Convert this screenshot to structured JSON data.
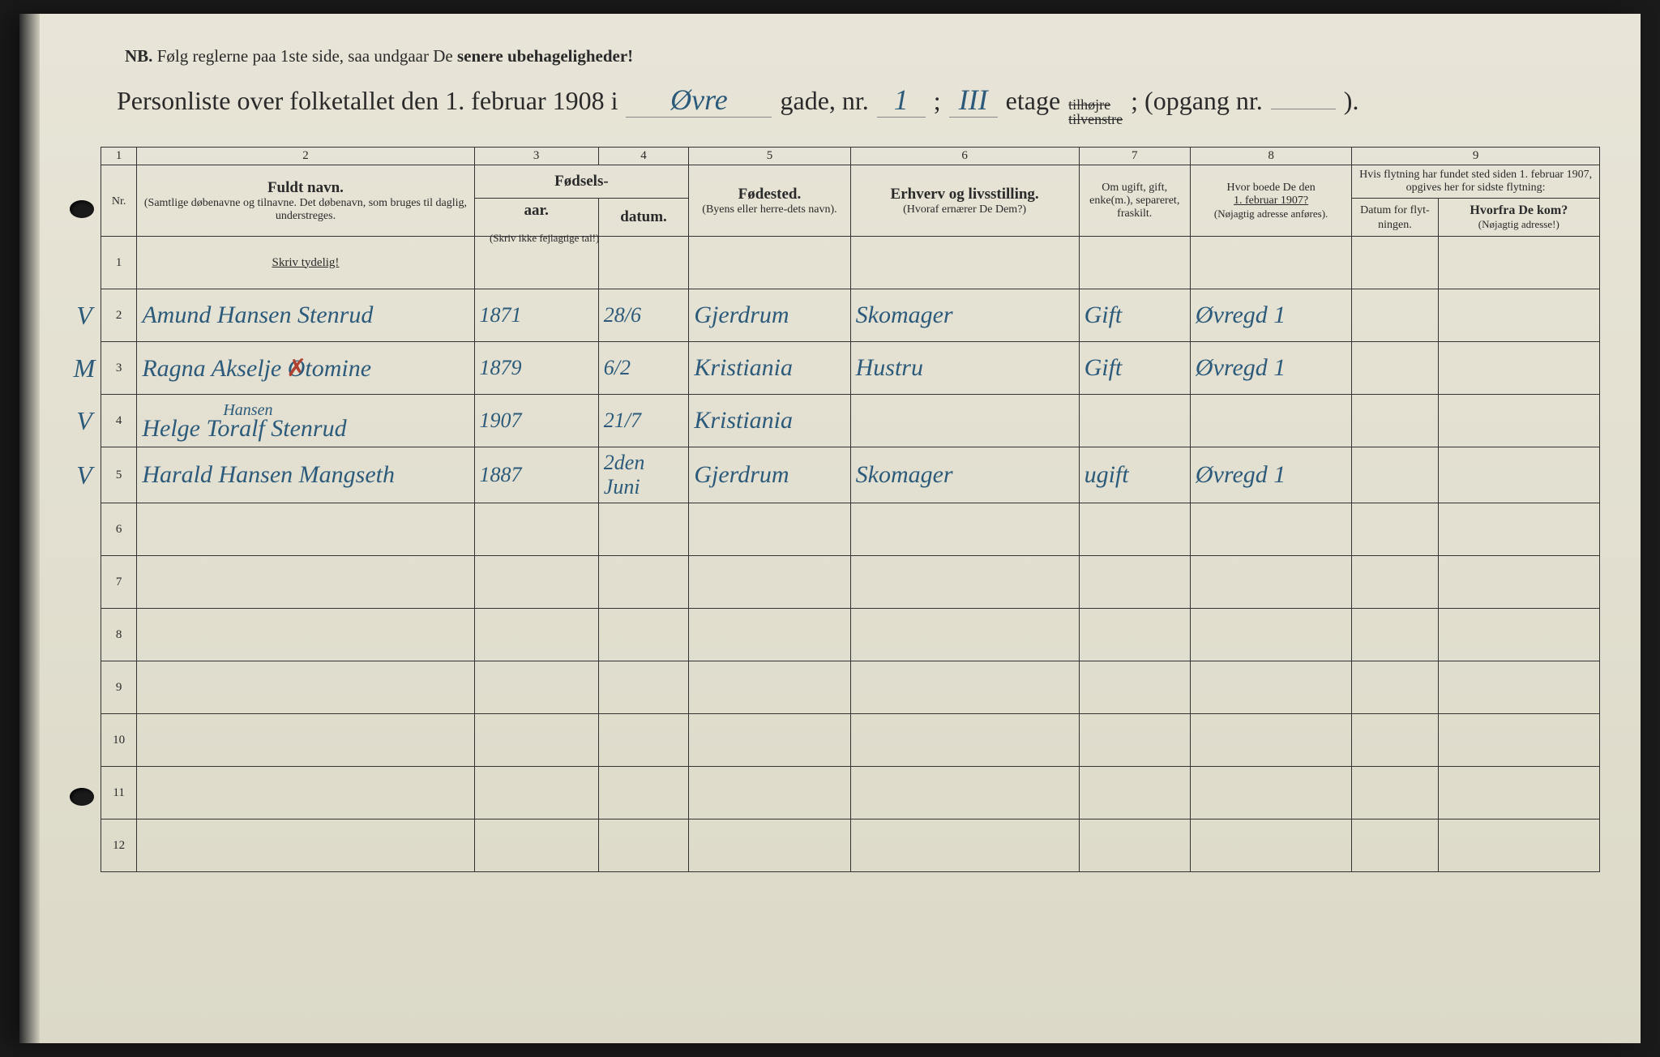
{
  "nb": {
    "prefix": "NB.",
    "text": "Følg reglerne paa 1ste side, saa undgaar De",
    "bold_text": "senere ubehageligheder!"
  },
  "title": {
    "main": "Personliste over folketallet den 1. februar 1908 i",
    "street_hw": "Øvre",
    "gade_label": "gade, nr.",
    "gade_nr_hw": "1",
    "semicolon": ";",
    "etage_hw": "III",
    "etage_label": "etage",
    "strike_top": "tilhøjre",
    "strike_bottom": "tilvenstre",
    "opgang_label": "; (opgang nr.",
    "close": ")."
  },
  "columns": {
    "c1": "1",
    "c2": "2",
    "c3": "3",
    "c4": "4",
    "c5": "5",
    "c6": "6",
    "c7": "7",
    "c8": "8",
    "c9": "9"
  },
  "headers": {
    "nr": "Nr.",
    "fuldt_navn": "Fuldt navn.",
    "fuldt_navn_sub": "(Samtlige døbenavne og tilnavne. Det døbenavn, som bruges til daglig, understreges.",
    "fodsels": "Fødsels-",
    "aar": "aar.",
    "datum": "datum.",
    "fodsels_note": "(Skriv ikke fejlagtige tal!)",
    "fodested": "Fødested.",
    "fodested_sub": "(Byens eller herre-dets navn).",
    "erhverv": "Erhverv og livsstilling.",
    "erhverv_sub": "(Hvoraf ernærer De Dem?)",
    "om_ugift": "Om ugift, gift, enke(m.), separeret, fraskilt.",
    "hvor_boede": "Hvor boede De den",
    "hvor_boede_date": "1. februar 1907?",
    "hvor_boede_sub": "(Nøjagtig adresse anføres).",
    "flytning": "Hvis flytning har fundet sted siden 1. februar 1907, opgives her for sidste flytning:",
    "datum_flyt": "Datum for flyt-ningen.",
    "hvorfra": "Hvorfra De kom?",
    "hvorfra_sub": "(Nøjagtig adresse!)",
    "skriv_tydelig": "Skriv tydelig!"
  },
  "rows": [
    {
      "nr": "1",
      "margin": "",
      "name": "",
      "year": "",
      "date": "",
      "birthplace": "",
      "occupation": "",
      "marital": "",
      "address": ""
    },
    {
      "nr": "2",
      "margin": "V",
      "name": "Amund Hansen Stenrud",
      "year": "1871",
      "date": "28/6",
      "birthplace": "Gjerdrum",
      "occupation": "Skomager",
      "marital": "Gift",
      "address": "Øvregd 1"
    },
    {
      "nr": "3",
      "margin": "M",
      "name": "Ragna Akselje Otomine",
      "name_has_x": true,
      "year": "1879",
      "date": "6/2",
      "birthplace": "Kristiania",
      "occupation": "Hustru",
      "marital": "Gift",
      "address": "Øvregd 1"
    },
    {
      "nr": "4",
      "margin": "V",
      "name_top": "Hansen",
      "name": "Helge Toralf Stenrud",
      "year": "1907",
      "date": "21/7",
      "birthplace": "Kristiania",
      "occupation": "",
      "marital": "",
      "address": ""
    },
    {
      "nr": "5",
      "margin": "V",
      "name": "Harald Hansen Mangseth",
      "year": "1887",
      "date": "2den Juni",
      "birthplace": "Gjerdrum",
      "occupation": "Skomager",
      "marital": "ugift",
      "address": "Øvregd 1"
    },
    {
      "nr": "6"
    },
    {
      "nr": "7"
    },
    {
      "nr": "8"
    },
    {
      "nr": "9"
    },
    {
      "nr": "10"
    },
    {
      "nr": "11"
    },
    {
      "nr": "12"
    }
  ],
  "colors": {
    "paper": "#e5e2d3",
    "ink": "#2a2a2a",
    "handwriting": "#2b5a7a",
    "red": "#b04030"
  }
}
